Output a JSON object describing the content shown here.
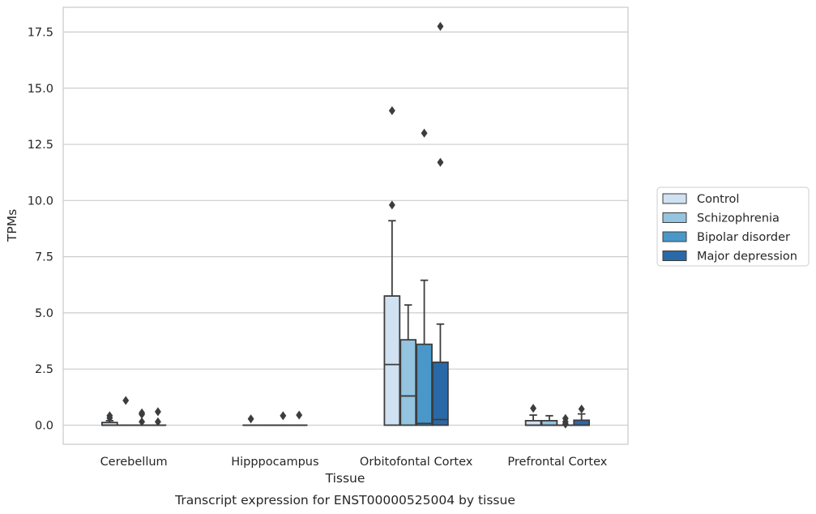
{
  "chart_data": {
    "type": "boxplot",
    "caption": "Transcript expression for ENST00000525004 by tissue",
    "xlabel": "Tissue",
    "ylabel": "TPMs",
    "ylim": [
      -0.85,
      18.6
    ],
    "yticks": [
      0.0,
      2.5,
      5.0,
      7.5,
      10.0,
      12.5,
      15.0,
      17.5
    ],
    "ytick_labels": [
      "0.0",
      "2.5",
      "5.0",
      "7.5",
      "10.0",
      "12.5",
      "15.0",
      "17.5"
    ],
    "grid": "horizontal",
    "legend_position": "right",
    "categories": [
      "Cerebellum",
      "Hipppocampus",
      "Orbitofontal Cortex",
      "Prefrontal Cortex"
    ],
    "series": [
      {
        "name": "Control",
        "color": "#d0e1f2",
        "boxes": [
          {
            "q1": 0.0,
            "median": 0.0,
            "q3": 0.12,
            "whislo": 0.0,
            "whishi": 0.2,
            "fliers": [
              0.32,
              0.42
            ]
          },
          {
            "q1": 0.0,
            "median": 0.0,
            "q3": 0.0,
            "whislo": 0.0,
            "whishi": 0.0,
            "fliers": [
              0.28
            ]
          },
          {
            "q1": 0.0,
            "median": 2.7,
            "q3": 5.75,
            "whislo": 0.0,
            "whishi": 9.1,
            "fliers": [
              9.8,
              14.0
            ]
          },
          {
            "q1": 0.0,
            "median": 0.0,
            "q3": 0.2,
            "whislo": 0.0,
            "whishi": 0.45,
            "fliers": [
              0.75
            ]
          }
        ]
      },
      {
        "name": "Schizophrenia",
        "color": "#94c4df",
        "boxes": [
          {
            "q1": 0.0,
            "median": 0.0,
            "q3": 0.0,
            "whislo": 0.0,
            "whishi": 0.0,
            "fliers": [
              1.1
            ]
          },
          {
            "q1": 0.0,
            "median": 0.0,
            "q3": 0.0,
            "whislo": 0.0,
            "whishi": 0.0,
            "fliers": []
          },
          {
            "q1": 0.0,
            "median": 1.3,
            "q3": 3.8,
            "whislo": 0.0,
            "whishi": 5.35,
            "fliers": []
          },
          {
            "q1": 0.0,
            "median": 0.0,
            "q3": 0.2,
            "whislo": 0.0,
            "whishi": 0.42,
            "fliers": []
          }
        ]
      },
      {
        "name": "Bipolar disorder",
        "color": "#4a98c9",
        "boxes": [
          {
            "q1": 0.0,
            "median": 0.0,
            "q3": 0.0,
            "whislo": 0.0,
            "whishi": 0.0,
            "fliers": [
              0.15,
              0.48,
              0.55
            ]
          },
          {
            "q1": 0.0,
            "median": 0.0,
            "q3": 0.0,
            "whislo": 0.0,
            "whishi": 0.0,
            "fliers": [
              0.42
            ]
          },
          {
            "q1": 0.0,
            "median": 0.08,
            "q3": 3.6,
            "whislo": 0.0,
            "whishi": 6.45,
            "fliers": [
              13.0
            ]
          },
          {
            "q1": 0.0,
            "median": 0.0,
            "q3": 0.0,
            "whislo": 0.0,
            "whishi": 0.0,
            "fliers": [
              0.05,
              0.15,
              0.3
            ]
          }
        ]
      },
      {
        "name": "Major depression",
        "color": "#2a69a8",
        "boxes": [
          {
            "q1": 0.0,
            "median": 0.0,
            "q3": 0.0,
            "whislo": 0.0,
            "whishi": 0.0,
            "fliers": [
              0.15,
              0.6
            ]
          },
          {
            "q1": 0.0,
            "median": 0.0,
            "q3": 0.0,
            "whislo": 0.0,
            "whishi": 0.0,
            "fliers": [
              0.45
            ]
          },
          {
            "q1": 0.0,
            "median": 0.25,
            "q3": 2.8,
            "whislo": 0.0,
            "whishi": 4.5,
            "fliers": [
              11.7,
              17.75
            ]
          },
          {
            "q1": 0.0,
            "median": 0.0,
            "q3": 0.22,
            "whislo": 0.0,
            "whishi": 0.5,
            "fliers": [
              0.72
            ]
          }
        ]
      }
    ]
  }
}
